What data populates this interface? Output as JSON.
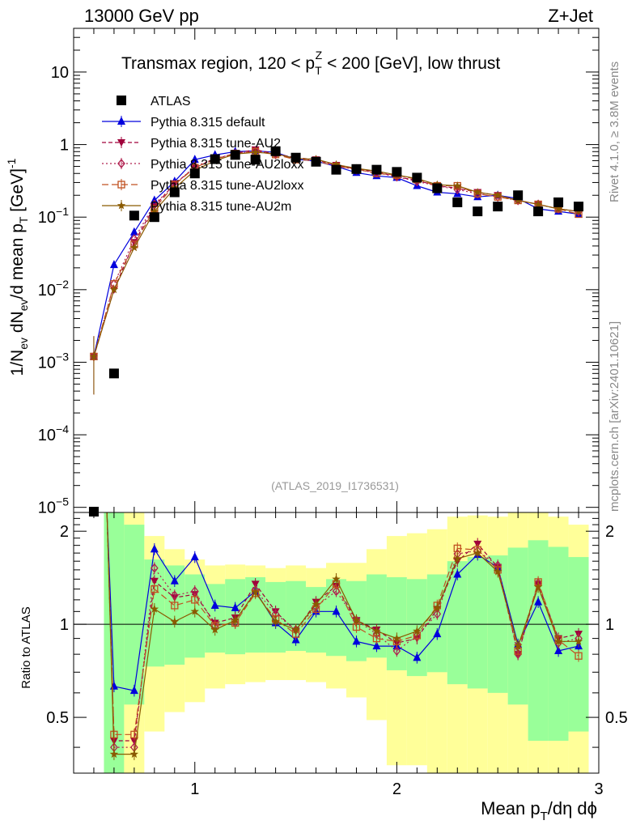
{
  "chart_data": {
    "type": "scatter",
    "header": {
      "left": "13000 GeV pp",
      "right": "Z+Jet"
    },
    "title": {
      "main": "Transmax region, 120 < p",
      "sup": "Z",
      "sub": "T",
      "tail": " < 200 [GeV], low thrust"
    },
    "ylabel": "1/N_ev dN_ev/d mean p_T [GeV]^-1",
    "ylabel_parts": {
      "a": "1/N",
      "b": "ev",
      "c": " dN",
      "d": "ev",
      "e": "/d mean p",
      "f": "T",
      "g": " [GeV]",
      "h": "-1"
    },
    "ratio_ylabel": "Ratio to ATLAS",
    "xlabel_parts": {
      "a": "Mean p",
      "b": "T",
      "c": "/dη dϕ"
    },
    "watermark": "(ATLAS_2019_I1736531)",
    "side_top": "Rivet 4.1.0, ≥ 3.8M events",
    "side_bottom": "mcplots.cern.ch [arXiv:2401.10621]",
    "xlim": [
      0.4,
      3.0
    ],
    "ylim_main": [
      8.5e-06,
      40
    ],
    "ylim_ratio": [
      0.33,
      2.3
    ],
    "x_ticks": [
      1,
      2,
      3
    ],
    "y_ticks_main": [
      {
        "v": 1e-05,
        "base": "10",
        "exp": "−5"
      },
      {
        "v": 0.0001,
        "base": "10",
        "exp": "−4"
      },
      {
        "v": 0.001,
        "base": "10",
        "exp": "−3"
      },
      {
        "v": 0.01,
        "base": "10",
        "exp": "−2"
      },
      {
        "v": 0.1,
        "base": "10",
        "exp": "−1"
      },
      {
        "v": 1,
        "base": "1",
        "exp": ""
      },
      {
        "v": 10,
        "base": "10",
        "exp": ""
      }
    ],
    "y_ticks_ratio": [
      0.5,
      1,
      2
    ],
    "x": [
      0.5,
      0.6,
      0.7,
      0.8,
      0.9,
      1.0,
      1.1,
      1.2,
      1.3,
      1.4,
      1.5,
      1.6,
      1.7,
      1.8,
      1.9,
      2.0,
      2.1,
      2.2,
      2.3,
      2.4,
      2.5,
      2.6,
      2.7,
      2.8,
      2.9
    ],
    "data": {
      "name": "ATLAS",
      "values": [
        7.5e-06,
        0.0007,
        0.105,
        0.1,
        0.22,
        0.4,
        0.63,
        0.72,
        0.62,
        0.81,
        0.66,
        0.58,
        0.45,
        0.46,
        0.45,
        0.42,
        0.35,
        0.25,
        0.16,
        0.12,
        0.14,
        0.2,
        0.12,
        0.16,
        0.14
      ]
    },
    "band_inner": [
      [
        0.08,
        2.6
      ],
      [
        0.08,
        2.6
      ],
      [
        0.55,
        2.1
      ],
      [
        0.73,
        1.62
      ],
      [
        0.74,
        1.55
      ],
      [
        0.78,
        1.45
      ],
      [
        0.81,
        1.35
      ],
      [
        0.8,
        1.4
      ],
      [
        0.81,
        1.42
      ],
      [
        0.81,
        1.37
      ],
      [
        0.82,
        1.38
      ],
      [
        0.81,
        1.32
      ],
      [
        0.79,
        1.4
      ],
      [
        0.76,
        1.38
      ],
      [
        0.78,
        1.45
      ],
      [
        0.71,
        1.42
      ],
      [
        0.68,
        1.4
      ],
      [
        0.7,
        1.45
      ],
      [
        0.64,
        1.6
      ],
      [
        0.62,
        1.65
      ],
      [
        0.6,
        1.67
      ],
      [
        0.55,
        1.77
      ],
      [
        0.42,
        1.87
      ],
      [
        0.42,
        1.78
      ],
      [
        0.45,
        1.65
      ]
    ],
    "band_outer": [
      [
        0.08,
        2.6
      ],
      [
        0.08,
        2.6
      ],
      [
        0.32,
        2.5
      ],
      [
        0.45,
        1.93
      ],
      [
        0.52,
        1.75
      ],
      [
        0.56,
        1.62
      ],
      [
        0.62,
        1.55
      ],
      [
        0.64,
        1.56
      ],
      [
        0.65,
        1.55
      ],
      [
        0.66,
        1.52
      ],
      [
        0.66,
        1.55
      ],
      [
        0.65,
        1.52
      ],
      [
        0.62,
        1.58
      ],
      [
        0.58,
        1.58
      ],
      [
        0.49,
        1.75
      ],
      [
        0.35,
        1.93
      ],
      [
        0.35,
        1.97
      ],
      [
        0.32,
        2.03
      ],
      [
        0.32,
        2.23
      ],
      [
        0.32,
        2.25
      ],
      [
        0.32,
        2.23
      ],
      [
        0.32,
        2.3
      ],
      [
        0.32,
        2.45
      ],
      [
        0.32,
        2.23
      ],
      [
        0.32,
        2.1
      ]
    ],
    "series": [
      {
        "name": "Pythia 8.315 default",
        "color": "#0000dd",
        "marker": "triangle",
        "dash": "",
        "values": [
          0.0012,
          0.022,
          0.062,
          0.17,
          0.31,
          0.62,
          0.72,
          0.8,
          0.82,
          0.78,
          0.63,
          0.59,
          0.5,
          0.41,
          0.37,
          0.35,
          0.27,
          0.22,
          0.21,
          0.19,
          0.2,
          0.18,
          0.13,
          0.12,
          0.11
        ],
        "ratio": [
          null,
          0.63,
          0.61,
          1.75,
          1.38,
          1.65,
          1.15,
          1.13,
          1.28,
          1.01,
          0.89,
          1.1,
          1.1,
          0.88,
          0.85,
          0.85,
          0.78,
          0.93,
          1.45,
          1.68,
          1.53,
          0.86,
          1.18,
          0.82,
          0.85
        ]
      },
      {
        "name": "Pythia 8.315 tune-AU2",
        "color": "#a0003a",
        "marker": "triangle-down",
        "dash": "5,3",
        "values": [
          0.0012,
          0.01,
          0.045,
          0.14,
          0.29,
          0.48,
          0.63,
          0.76,
          0.85,
          0.74,
          0.66,
          0.62,
          0.52,
          0.46,
          0.42,
          0.36,
          0.32,
          0.27,
          0.25,
          0.22,
          0.2,
          0.17,
          0.15,
          0.13,
          0.12
        ],
        "ratio": [
          null,
          0.42,
          0.42,
          1.38,
          1.22,
          1.25,
          1.01,
          1.05,
          1.35,
          1.1,
          0.95,
          1.18,
          1.33,
          1.03,
          0.96,
          0.87,
          0.9,
          1.12,
          1.6,
          1.82,
          1.53,
          0.8,
          1.35,
          0.9,
          0.93
        ]
      },
      {
        "name": "Pythia 8.315 tune-AU2loxx",
        "color": "#b0204f",
        "marker": "diamond",
        "dash": "2,3",
        "values": [
          0.0012,
          0.012,
          0.05,
          0.15,
          0.28,
          0.5,
          0.64,
          0.75,
          0.82,
          0.73,
          0.64,
          0.61,
          0.51,
          0.45,
          0.41,
          0.36,
          0.31,
          0.27,
          0.24,
          0.21,
          0.19,
          0.17,
          0.15,
          0.13,
          0.12
        ],
        "ratio": [
          null,
          0.4,
          0.4,
          1.52,
          1.24,
          1.28,
          0.99,
          1.01,
          1.29,
          1.08,
          0.96,
          1.14,
          1.28,
          1.03,
          0.93,
          0.82,
          0.92,
          1.08,
          1.69,
          1.73,
          1.55,
          0.8,
          1.36,
          0.87,
          0.9
        ]
      },
      {
        "name": "Pythia 8.315 tune-AU2loxx",
        "color": "#c05020",
        "marker": "square-open",
        "dash": "8,4",
        "values": [
          0.0012,
          0.012,
          0.042,
          0.13,
          0.28,
          0.48,
          0.63,
          0.75,
          0.8,
          0.73,
          0.62,
          0.6,
          0.5,
          0.46,
          0.4,
          0.38,
          0.33,
          0.27,
          0.27,
          0.21,
          0.19,
          0.17,
          0.15,
          0.13,
          0.11
        ],
        "ratio": [
          null,
          0.44,
          0.44,
          1.3,
          1.15,
          1.2,
          0.99,
          1.01,
          1.26,
          1.04,
          0.93,
          1.12,
          1.35,
          0.98,
          0.9,
          0.88,
          0.92,
          1.15,
          1.76,
          1.74,
          1.5,
          0.82,
          1.37,
          0.89,
          0.79
        ]
      },
      {
        "name": "Pythia 8.315 tune-AU2m",
        "color": "#8a5a00",
        "marker": "star",
        "dash": "",
        "values": [
          0.0012,
          0.01,
          0.038,
          0.12,
          0.25,
          0.44,
          0.6,
          0.74,
          0.78,
          0.75,
          0.64,
          0.63,
          0.53,
          0.47,
          0.43,
          0.38,
          0.34,
          0.28,
          0.27,
          0.22,
          0.2,
          0.17,
          0.15,
          0.13,
          0.12
        ],
        "ratio": [
          null,
          0.38,
          0.38,
          1.12,
          1.02,
          1.1,
          0.96,
          1.03,
          1.27,
          1.02,
          0.96,
          1.16,
          1.4,
          1.03,
          0.95,
          0.9,
          0.95,
          1.13,
          1.63,
          1.7,
          1.48,
          0.85,
          1.32,
          0.88,
          0.88
        ]
      }
    ]
  }
}
